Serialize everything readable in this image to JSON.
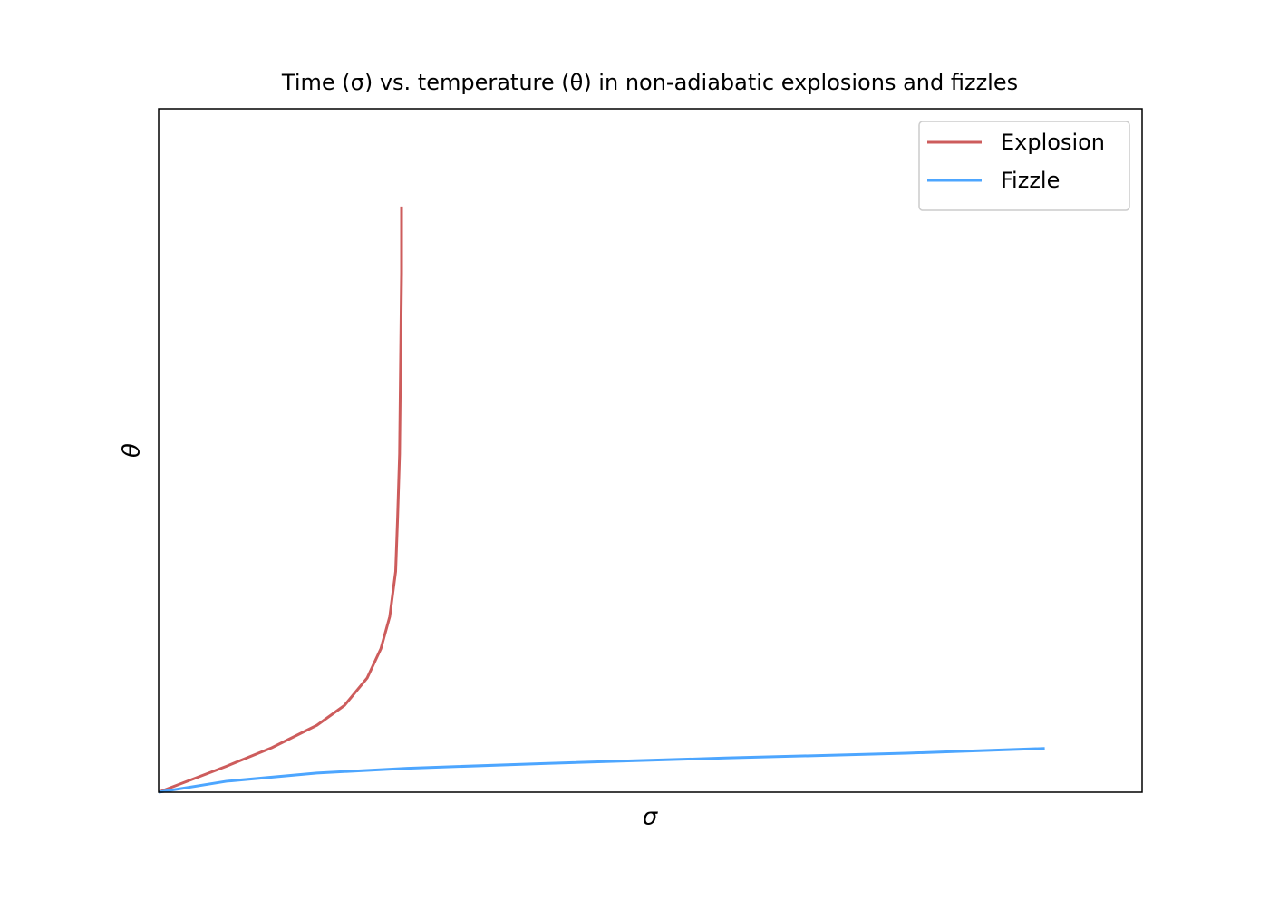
{
  "chart_data": {
    "type": "line",
    "title": "Time (σ) vs. temperature (θ) in non-adiabatic explosions and fizzles",
    "xlabel": "σ",
    "ylabel": "θ",
    "xlim": [
      0,
      1
    ],
    "ylim": [
      0,
      1
    ],
    "grid": false,
    "legend": "upper right",
    "series": [
      {
        "name": "Explosion",
        "color": "#cd5c5c",
        "x": [
          0,
          0.069,
          0.115,
          0.161,
          0.189,
          0.212,
          0.226,
          0.235,
          0.241,
          0.243,
          0.245,
          0.246,
          0.247,
          0.247
        ],
        "values": [
          0,
          0.038,
          0.065,
          0.098,
          0.127,
          0.167,
          0.21,
          0.257,
          0.323,
          0.402,
          0.495,
          0.628,
          0.76,
          0.857
        ]
      },
      {
        "name": "Fizzle",
        "color": "#4da6ff",
        "x": [
          0,
          0.069,
          0.161,
          0.253,
          0.392,
          0.576,
          0.76,
          0.901
        ],
        "values": [
          0,
          0.016,
          0.028,
          0.035,
          0.042,
          0.05,
          0.057,
          0.064
        ]
      }
    ]
  }
}
